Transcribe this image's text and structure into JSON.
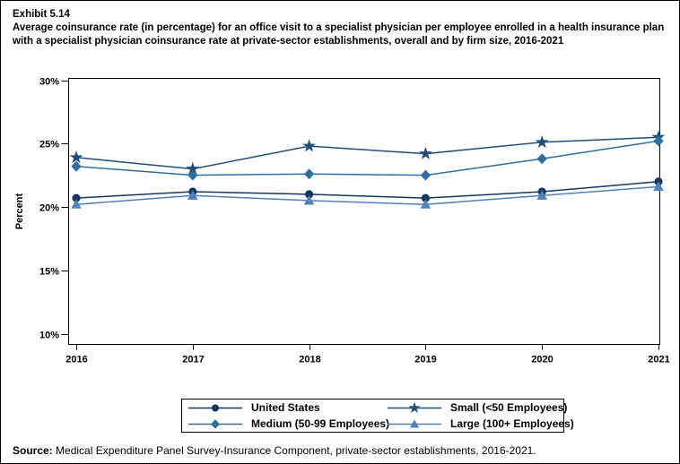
{
  "page": {
    "exhibit_label": "Exhibit 5.14",
    "title": "Average coinsurance rate (in percentage) for an office visit to a specialist physician per employee enrolled in a health insurance plan with a specialist physician coinsurance rate at private-sector establishments, overall and by firm size, 2016-2021",
    "source_label": "Source:",
    "source_text": " Medical Expenditure Panel Survey-Insurance Component, private-sector establishments, 2016-2021."
  },
  "chart_data": {
    "type": "line",
    "title": "Average coinsurance rate (in percentage) for an office visit to a specialist physician per employee enrolled in a health insurance plan with a specialist physician coinsurance rate at private-sector establishments, overall and by firm size, 2016-2021",
    "xlabel": "",
    "ylabel": "Percent",
    "x": [
      2016,
      2017,
      2018,
      2019,
      2020,
      2021
    ],
    "ylim": [
      10,
      30
    ],
    "yticks": [
      10,
      15,
      20,
      25,
      30
    ],
    "ytick_suffix": "%",
    "grid": false,
    "legend_position": "bottom",
    "series": [
      {
        "name": "United States",
        "marker": "circle",
        "color": "#17375E",
        "values": [
          20.7,
          21.2,
          21.0,
          20.7,
          21.2,
          22.0
        ]
      },
      {
        "name": "Small (<50 Employees)",
        "marker": "star",
        "color": "#1F4E79",
        "values": [
          23.9,
          23.0,
          24.8,
          24.2,
          25.1,
          25.5
        ]
      },
      {
        "name": "Medium (50-99 Employees)",
        "marker": "diamond",
        "color": "#2E6F9E",
        "values": [
          23.2,
          22.5,
          22.6,
          22.5,
          23.8,
          25.2
        ]
      },
      {
        "name": "Large (100+ Employees)",
        "marker": "triangle",
        "color": "#4F81BD",
        "values": [
          20.2,
          20.9,
          20.5,
          20.2,
          20.9,
          21.6
        ]
      }
    ],
    "legend_dom_order": [
      0,
      1,
      2,
      3
    ]
  }
}
